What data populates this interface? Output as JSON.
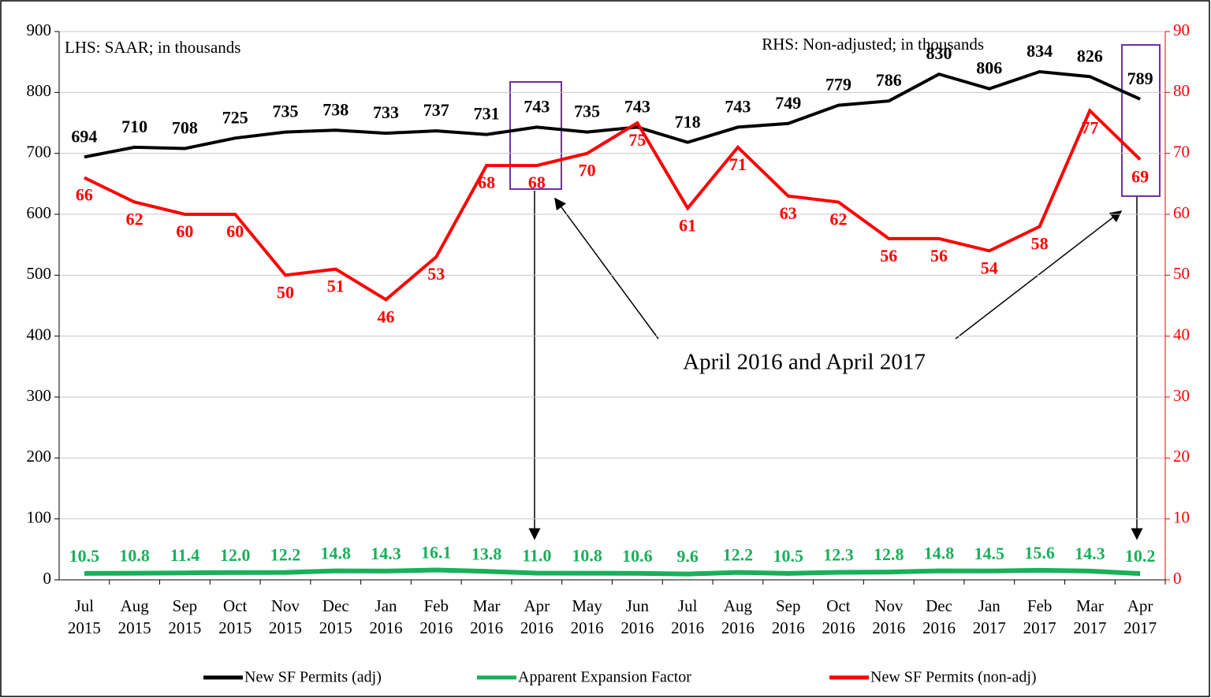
{
  "chart_data": {
    "type": "line",
    "annotations": [
      "LHS: SAAR; in thousands",
      "RHS: Non-adjusted; in thousands",
      "April 2016 and April 2017"
    ],
    "categories": [
      "Jul 2015",
      "Aug 2015",
      "Sep 2015",
      "Oct 2015",
      "Nov 2015",
      "Dec 2015",
      "Jan 2016",
      "Feb 2016",
      "Mar 2016",
      "Apr 2016",
      "May 2016",
      "Jun 2016",
      "Jul 2016",
      "Aug 2016",
      "Sep 2016",
      "Oct 2016",
      "Nov 2016",
      "Dec 2016",
      "Jan 2017",
      "Feb 2017",
      "Mar 2017",
      "Apr 2017"
    ],
    "series": [
      {
        "name": "New SF Permits (adj)",
        "color": "#000000",
        "values": [
          694,
          710,
          708,
          725,
          735,
          738,
          733,
          737,
          731,
          743,
          735,
          743,
          718,
          743,
          749,
          779,
          786,
          830,
          806,
          834,
          826,
          789
        ]
      },
      {
        "name": "Apparent Expansion Factor",
        "color": "#19b05a",
        "values": [
          10.5,
          10.8,
          11.4,
          12.0,
          12.2,
          14.8,
          14.3,
          16.1,
          13.8,
          11.0,
          10.8,
          10.6,
          9.6,
          12.2,
          10.5,
          12.3,
          12.8,
          14.8,
          14.5,
          15.6,
          14.3,
          10.2
        ],
        "value_labels": [
          "10.5",
          "10.8",
          "11.4",
          "12.0",
          "12.2",
          "14.8",
          "14.3",
          "16.1",
          "13.8",
          "11.0",
          "10.8",
          "10.6",
          "9.6",
          "12.2",
          "10.5",
          "12.3",
          "12.8",
          "14.8",
          "14.5",
          "15.6",
          "14.3",
          "10.2"
        ]
      },
      {
        "name": "New SF Permits (non-adj)",
        "color": "#ff0000",
        "axis": "y2",
        "values": [
          66,
          62,
          60,
          60,
          50,
          51,
          46,
          53,
          68,
          68,
          70,
          75,
          61,
          71,
          63,
          62,
          56,
          56,
          54,
          58,
          77,
          69
        ]
      }
    ],
    "ylim": [
      0,
      900
    ],
    "yticks": [
      0,
      100,
      200,
      300,
      400,
      500,
      600,
      700,
      800,
      900
    ],
    "y2lim": [
      0,
      90
    ],
    "y2ticks": [
      0,
      10,
      20,
      30,
      40,
      50,
      60,
      70,
      80,
      90
    ],
    "grid": true
  }
}
